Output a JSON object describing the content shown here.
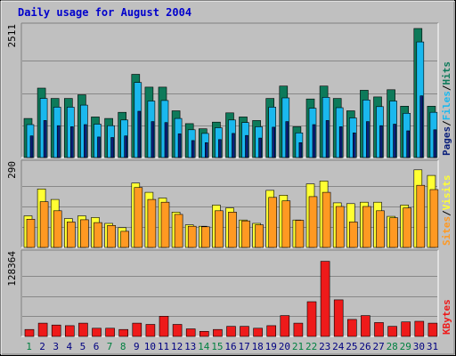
{
  "chart_data": {
    "type": "bar",
    "title": "Daily usage for August 2004",
    "categories": [
      "1",
      "2",
      "3",
      "4",
      "5",
      "6",
      "7",
      "8",
      "9",
      "10",
      "11",
      "12",
      "13",
      "14",
      "15",
      "16",
      "17",
      "18",
      "19",
      "20",
      "21",
      "22",
      "23",
      "24",
      "25",
      "26",
      "27",
      "28",
      "29",
      "30",
      "31"
    ],
    "weekend_days": [
      "1",
      "7",
      "8",
      "14",
      "15",
      "21",
      "22",
      "28",
      "29"
    ],
    "colors": {
      "title": "#0000cc",
      "background": "#c0c0c0",
      "weekday_label": "#000080",
      "weekend_label": "#008040",
      "hits": "#0d7a5a",
      "files": "#1ab8ee",
      "pages": "#0a1f7a",
      "visits": "#ffff33",
      "sites": "#ff9922",
      "kbytes": "#ee1a1a"
    },
    "panels": [
      {
        "id": "hits-files-pages",
        "max_label": "2511",
        "ylim": [
          0,
          2511
        ],
        "legend": [
          "Pages",
          "Files",
          "Hits"
        ],
        "series": [
          {
            "name": "Hits",
            "values": [
              760,
              1350,
              1150,
              1150,
              1220,
              790,
              760,
              880,
              1620,
              1370,
              1370,
              910,
              660,
              560,
              690,
              870,
              790,
              720,
              1150,
              1390,
              600,
              1140,
              1390,
              1150,
              910,
              1310,
              1180,
              1320,
              1000,
              2511,
              1000
            ]
          },
          {
            "name": "Files",
            "values": [
              640,
              1150,
              980,
              980,
              1020,
              650,
              620,
              730,
              1460,
              1100,
              1110,
              760,
              540,
              470,
              580,
              730,
              680,
              600,
              980,
              1160,
              480,
              960,
              1170,
              970,
              770,
              1120,
              990,
              1100,
              860,
              2250,
              880
            ]
          },
          {
            "name": "Pages",
            "values": [
              420,
              720,
              620,
              600,
              640,
              400,
              390,
              420,
              900,
              700,
              680,
              460,
              330,
              290,
              350,
              470,
              430,
              380,
              590,
              700,
              290,
              640,
              720,
              600,
              480,
              700,
              620,
              650,
              520,
              1200,
              540
            ]
          }
        ]
      },
      {
        "id": "visits-sites",
        "max_label": "290",
        "ylim": [
          0,
          290
        ],
        "legend": [
          "Sites",
          "Visits"
        ],
        "series": [
          {
            "name": "Visits",
            "values": [
              112,
              207,
              170,
              102,
              112,
              106,
              85,
              70,
              228,
              195,
              175,
              125,
              80,
              75,
              150,
              140,
              97,
              85,
              202,
              185,
              97,
              225,
              235,
              158,
              155,
              160,
              160,
              110,
              150,
              275,
              255
            ]
          },
          {
            "name": "Sites",
            "values": [
              100,
              162,
              130,
              90,
              98,
              88,
              78,
              57,
              212,
              170,
              160,
              117,
              75,
              73,
              130,
              125,
              94,
              80,
              177,
              165,
              96,
              180,
              195,
              145,
              90,
              145,
              130,
              105,
              140,
              220,
              205
            ]
          }
        ]
      },
      {
        "id": "kbytes",
        "max_label": "128364",
        "ylim": [
          0,
          128364
        ],
        "legend": [
          "KBytes"
        ],
        "series": [
          {
            "name": "KBytes",
            "values": [
              11000,
              21000,
              18000,
              17000,
              21000,
              13000,
              13000,
              11000,
              21000,
              19000,
              32000,
              19000,
              12000,
              8000,
              11000,
              16000,
              16000,
              13000,
              17000,
              33000,
              21000,
              55000,
              119000,
              58000,
              27000,
              33000,
              22000,
              16000,
              23000,
              24000,
              21000
            ]
          }
        ]
      }
    ]
  }
}
